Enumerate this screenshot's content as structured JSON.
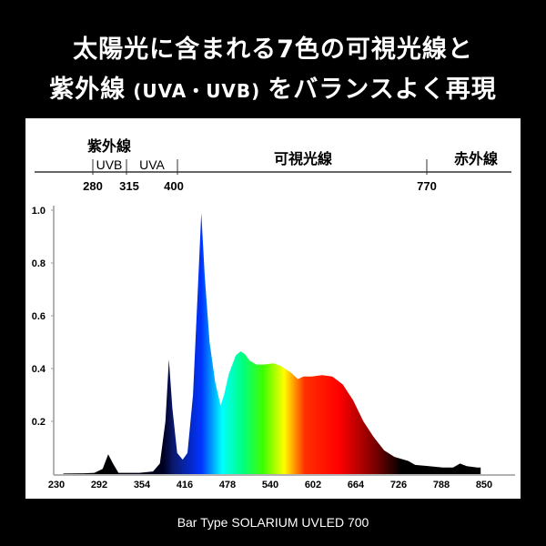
{
  "header": {
    "line1": "太陽光に含まれる7色の可視光線と",
    "line2_a": "紫外線",
    "line2_b": " (UVA・UVB) ",
    "line2_c": "をバランスよく再現"
  },
  "bands": {
    "uv": "紫外線",
    "uvb": "UVB",
    "uva": "UVA",
    "visible": "可視光線",
    "ir": "赤外線",
    "marks": [
      "280",
      "315",
      "400",
      "770"
    ]
  },
  "caption": "Bar Type SOLARIUM UVLED 700",
  "chart_data": {
    "type": "area",
    "title": "",
    "xlabel": "",
    "ylabel": "",
    "xlim": [
      230,
      850
    ],
    "ylim": [
      0,
      1.0
    ],
    "xticks": [
      "230",
      "292",
      "354",
      "416",
      "478",
      "540",
      "602",
      "664",
      "726",
      "788",
      "850"
    ],
    "yticks": [
      "0.2",
      "0.4",
      "0.6",
      "0.8",
      "1.0"
    ],
    "x": [
      240,
      270,
      285,
      297,
      305,
      312,
      320,
      350,
      370,
      380,
      388,
      393,
      398,
      405,
      413,
      420,
      428,
      435,
      440,
      445,
      452,
      460,
      468,
      473,
      480,
      490,
      497,
      503,
      510,
      520,
      530,
      545,
      555,
      570,
      580,
      588,
      600,
      615,
      630,
      645,
      660,
      675,
      690,
      705,
      720,
      740,
      750,
      770,
      790,
      805,
      815,
      825,
      840,
      845
    ],
    "y": [
      0.002,
      0.003,
      0.005,
      0.02,
      0.075,
      0.04,
      0.005,
      0.005,
      0.01,
      0.04,
      0.2,
      0.435,
      0.25,
      0.08,
      0.055,
      0.08,
      0.3,
      0.7,
      0.99,
      0.75,
      0.5,
      0.35,
      0.26,
      0.3,
      0.38,
      0.45,
      0.465,
      0.455,
      0.43,
      0.415,
      0.415,
      0.42,
      0.41,
      0.385,
      0.36,
      0.37,
      0.37,
      0.375,
      0.37,
      0.34,
      0.28,
      0.2,
      0.14,
      0.09,
      0.065,
      0.05,
      0.035,
      0.03,
      0.025,
      0.025,
      0.04,
      0.03,
      0.025,
      0.025
    ],
    "fill_colors": [
      [
        "300",
        "#000000"
      ],
      [
        "385",
        "#000020"
      ],
      [
        "400",
        "#0a1a70"
      ],
      [
        "440",
        "#0033ff"
      ],
      [
        "470",
        "#00ffff"
      ],
      [
        "500",
        "#00ff80"
      ],
      [
        "530",
        "#40ff00"
      ],
      [
        "560",
        "#ffff00"
      ],
      [
        "590",
        "#ff3000"
      ],
      [
        "640",
        "#ff0000"
      ],
      [
        "690",
        "#800000"
      ],
      [
        "730",
        "#000000"
      ]
    ]
  }
}
